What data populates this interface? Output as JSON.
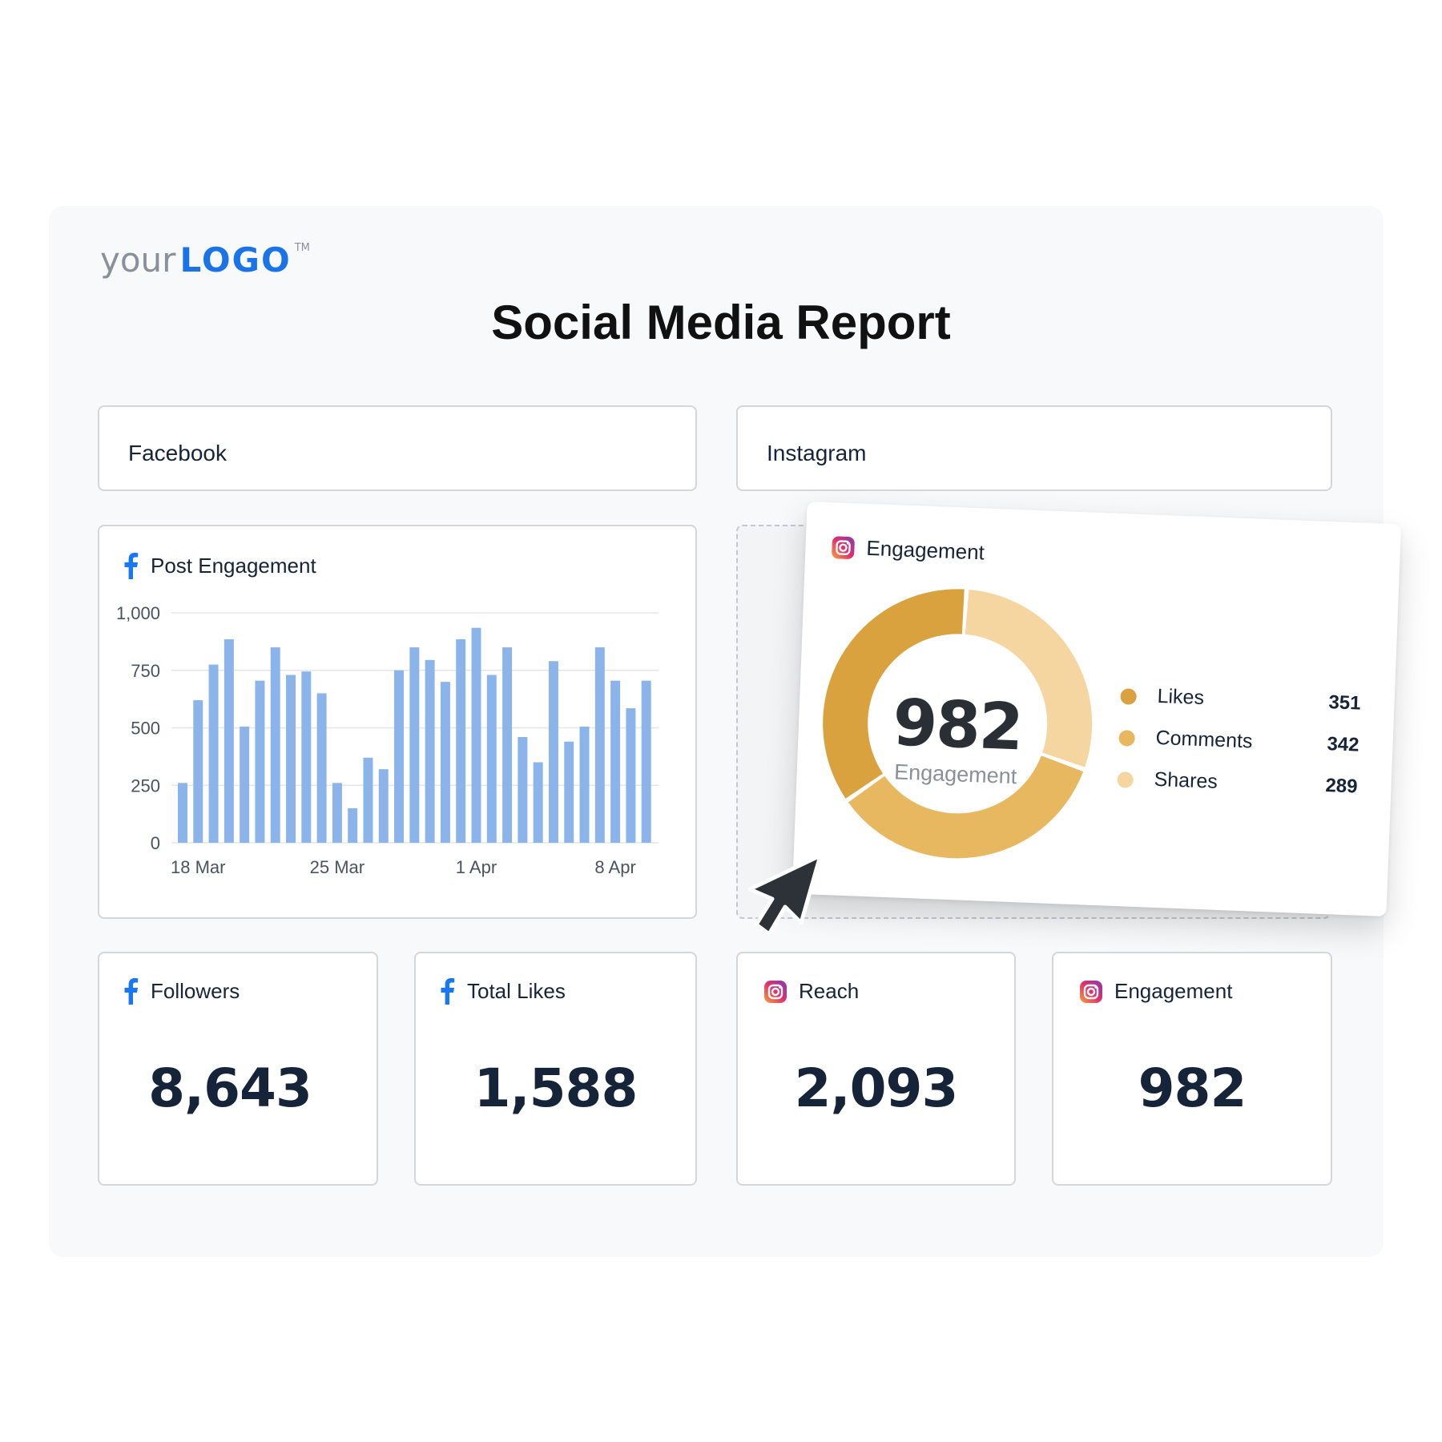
{
  "logo": {
    "prefix": "your",
    "brand": "LOGO",
    "tm": "TM"
  },
  "report_title": "Social Media Report",
  "sections": {
    "facebook": "Facebook",
    "instagram": "Instagram"
  },
  "post_engagement": {
    "title": "Post Engagement",
    "icon": "facebook-icon",
    "chart_data": {
      "type": "bar",
      "title": "Post Engagement",
      "ylim": [
        0,
        1000
      ],
      "y_ticks": [
        "0",
        "250",
        "500",
        "750",
        "1,000"
      ],
      "x_labels": [
        "18 Mar",
        "25 Mar",
        "1 Apr",
        "8 Apr"
      ],
      "values": [
        260,
        620,
        775,
        885,
        505,
        705,
        850,
        730,
        745,
        650,
        260,
        150,
        370,
        320,
        750,
        850,
        795,
        700,
        885,
        935,
        730,
        850,
        460,
        350,
        790,
        440,
        505,
        850,
        705,
        585,
        705
      ],
      "color": "#8ab4ea",
      "grid": true
    }
  },
  "engagement_popup": {
    "title": "Engagement",
    "icon": "instagram-icon",
    "center_value": "982",
    "center_label": "Engagement",
    "chart_data": {
      "type": "pie",
      "total": 982,
      "slices": [
        {
          "label": "Likes",
          "value": 351,
          "color": "#d9a23e"
        },
        {
          "label": "Comments",
          "value": 342,
          "color": "#e8b860"
        },
        {
          "label": "Shares",
          "value": 289,
          "color": "#f5d6a0"
        }
      ]
    },
    "legend": [
      {
        "label": "Likes",
        "value": "351",
        "color": "#d9a23e"
      },
      {
        "label": "Comments",
        "value": "342",
        "color": "#e8b860"
      },
      {
        "label": "Shares",
        "value": "289",
        "color": "#f5d6a0"
      }
    ]
  },
  "metrics": [
    {
      "label": "Followers",
      "value": "8,643",
      "icon": "facebook-icon"
    },
    {
      "label": "Total Likes",
      "value": "1,588",
      "icon": "facebook-icon"
    },
    {
      "label": "Reach",
      "value": "2,093",
      "icon": "instagram-icon"
    },
    {
      "label": "Engagement",
      "value": "982",
      "icon": "instagram-icon"
    }
  ],
  "colors": {
    "brand_blue": "#1a73e8",
    "facebook_blue": "#1877f2",
    "text_dark": "#16243a"
  }
}
